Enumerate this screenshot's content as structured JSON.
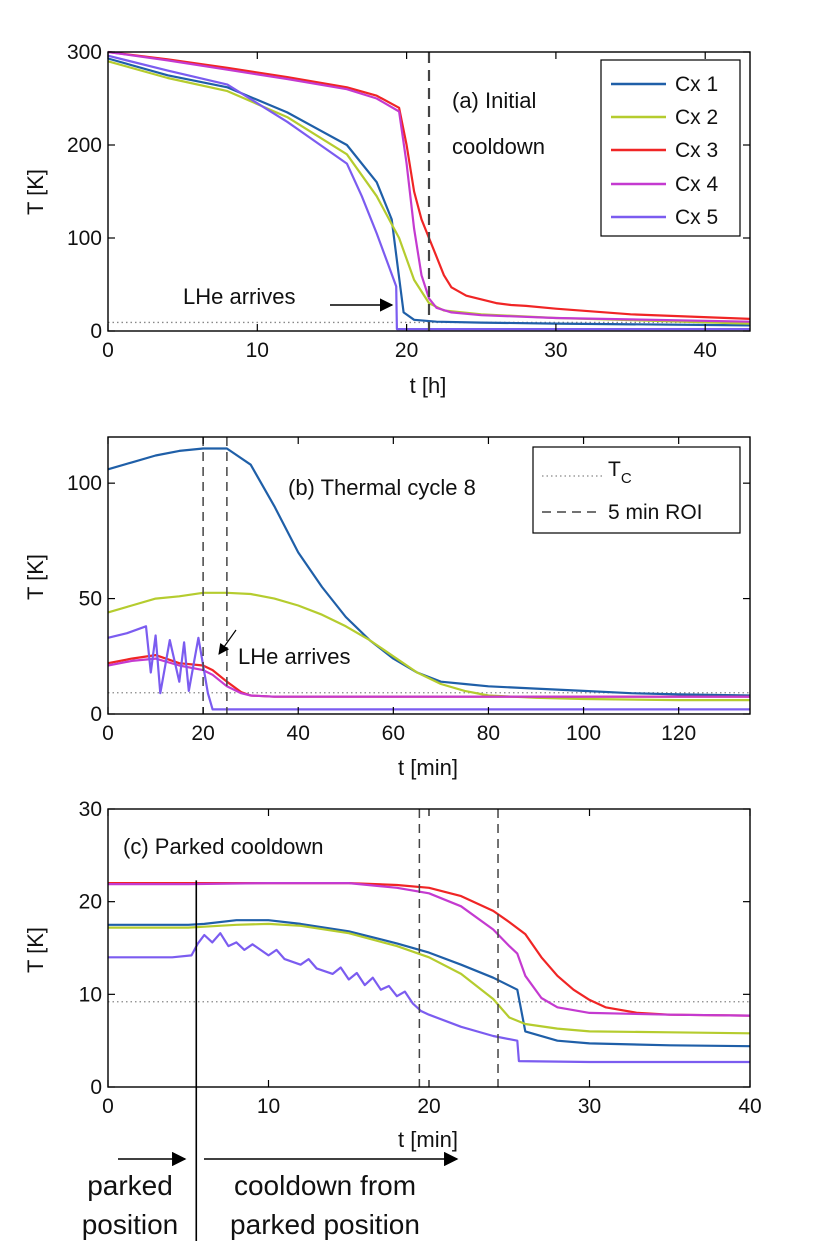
{
  "colors": {
    "Cx 1": "#1f5fa8",
    "Cx 2": "#b5cc2e",
    "Cx 3": "#f02525",
    "Cx 4": "#c43ad0",
    "Cx 5": "#7b5cf0",
    "Tc": "#888888",
    "roi": "#444444"
  },
  "chart_data": [
    {
      "id": "a",
      "type": "line",
      "title": "(a) Initial cooldown",
      "title_lines": [
        "(a) Initial",
        "cooldown"
      ],
      "xlabel": "t [h]",
      "ylabel": "T [K]",
      "xlim": [
        0,
        43
      ],
      "ylim": [
        0,
        300
      ],
      "xticks": [
        0,
        10,
        20,
        30,
        40
      ],
      "yticks": [
        0,
        100,
        200,
        300
      ],
      "tc": 9.2,
      "roi": [
        21.5
      ],
      "legend_entries": [
        "Cx 1",
        "Cx 2",
        "Cx 3",
        "Cx 4",
        "Cx 5"
      ],
      "annotation": {
        "text": "LHe arrives",
        "at": [
          19.3,
          30
        ]
      },
      "series": [
        {
          "name": "Cx 1",
          "x": [
            0,
            4,
            8,
            12,
            16,
            18,
            19,
            19.4,
            19.8,
            20.5,
            22,
            25,
            30,
            43
          ],
          "y": [
            293,
            275,
            262,
            235,
            200,
            160,
            120,
            70,
            20,
            12,
            10,
            9,
            8,
            6
          ]
        },
        {
          "name": "Cx 2",
          "x": [
            0,
            4,
            8,
            12,
            16,
            18,
            19.5,
            20.5,
            21.5,
            22.5,
            25,
            30,
            43
          ],
          "y": [
            290,
            272,
            258,
            230,
            190,
            145,
            100,
            55,
            30,
            22,
            18,
            14,
            8
          ]
        },
        {
          "name": "Cx 3",
          "x": [
            0,
            4,
            8,
            12,
            16,
            18,
            19.5,
            20,
            20.5,
            21,
            21.5,
            22,
            22.5,
            23,
            24,
            26,
            27,
            28,
            30,
            35,
            43
          ],
          "y": [
            300,
            292,
            283,
            273,
            262,
            253,
            240,
            200,
            150,
            120,
            100,
            80,
            60,
            47,
            38,
            30,
            28,
            27,
            24,
            18,
            13
          ]
        },
        {
          "name": "Cx 4",
          "x": [
            0,
            4,
            8,
            12,
            16,
            18,
            19.5,
            20,
            20.5,
            21,
            21.5,
            22,
            23,
            25,
            30,
            43
          ],
          "y": [
            300,
            291,
            281,
            271,
            260,
            250,
            236,
            180,
            110,
            60,
            35,
            25,
            20,
            17,
            14,
            10
          ]
        },
        {
          "name": "Cx 5",
          "x": [
            0,
            4,
            8,
            12,
            16,
            17,
            18,
            18.8,
            19.3,
            19.35,
            20,
            30,
            43
          ],
          "y": [
            296,
            280,
            265,
            225,
            180,
            145,
            105,
            70,
            48,
            2,
            2,
            2,
            2
          ]
        }
      ]
    },
    {
      "id": "b",
      "type": "line",
      "title": "(b) Thermal cycle 8",
      "xlabel": "t [min]",
      "ylabel": "T [K]",
      "xlim": [
        0,
        135
      ],
      "ylim": [
        0,
        120
      ],
      "xticks": [
        0,
        20,
        40,
        60,
        80,
        100,
        120
      ],
      "yticks": [
        0,
        50,
        100
      ],
      "tc": 9.2,
      "roi": [
        20,
        25
      ],
      "legend_entries": [
        {
          "style": "dotted",
          "label": "T",
          "sub": "C"
        },
        {
          "style": "dashed",
          "label": "5 min ROI",
          "sub": ""
        }
      ],
      "annotation": {
        "text": "LHe arrives",
        "at": [
          23,
          15
        ]
      },
      "series": [
        {
          "name": "Cx 1",
          "x": [
            0,
            5,
            10,
            15,
            20,
            25,
            30,
            35,
            40,
            45,
            50,
            55,
            60,
            65,
            70,
            75,
            80,
            90,
            100,
            110,
            120,
            135
          ],
          "y": [
            106,
            109,
            112,
            114,
            115,
            115,
            108,
            90,
            70,
            55,
            42,
            32,
            24,
            18,
            14,
            13,
            12,
            11,
            10,
            9,
            8.5,
            8
          ]
        },
        {
          "name": "Cx 2",
          "x": [
            0,
            5,
            10,
            15,
            20,
            25,
            30,
            35,
            40,
            45,
            50,
            55,
            60,
            65,
            70,
            75,
            80,
            90,
            100,
            120,
            135
          ],
          "y": [
            44,
            47,
            50,
            51,
            52.5,
            52.5,
            52,
            50,
            47,
            43,
            38,
            32,
            25,
            18,
            13,
            10,
            8,
            7,
            6.5,
            6,
            6
          ]
        },
        {
          "name": "Cx 3",
          "x": [
            0,
            5,
            10,
            15,
            20,
            22,
            25,
            28,
            30,
            35,
            40,
            60,
            80,
            100,
            120,
            135
          ],
          "y": [
            22,
            24,
            25.5,
            22,
            21,
            19,
            14,
            9.5,
            8,
            7.5,
            7.5,
            7.5,
            7.5,
            7.5,
            7.5,
            7.5
          ]
        },
        {
          "name": "Cx 4",
          "x": [
            0,
            5,
            10,
            15,
            20,
            22,
            25,
            28,
            30,
            35,
            40,
            60,
            80,
            100,
            120,
            135
          ],
          "y": [
            21,
            23,
            24,
            21,
            19,
            17,
            12,
            9,
            8,
            7.5,
            7.5,
            7.5,
            7.5,
            7.5,
            7.5,
            7.5
          ]
        },
        {
          "name": "Cx 5",
          "x": [
            0,
            4,
            8,
            9,
            10,
            11,
            13,
            15,
            16,
            17,
            19,
            21,
            22,
            23,
            25,
            40,
            80,
            135
          ],
          "y": [
            33,
            35,
            38,
            18,
            34,
            9,
            32,
            14,
            31,
            10,
            33,
            9,
            2,
            2,
            2,
            2,
            2,
            2
          ]
        }
      ]
    },
    {
      "id": "c",
      "type": "line",
      "title": "(c) Parked cooldown",
      "xlabel": "t [min]",
      "ylabel": "T [K]",
      "xlim": [
        0,
        40
      ],
      "ylim": [
        0,
        30
      ],
      "xticks": [
        0,
        10,
        20,
        30,
        40
      ],
      "yticks": [
        0,
        10,
        20,
        30
      ],
      "tc": 9.2,
      "roi": [
        19.4,
        24.3
      ],
      "marker_line": 5.5,
      "series": [
        {
          "name": "Cx 1",
          "x": [
            0,
            5,
            6,
            8,
            10,
            12,
            15,
            18,
            20,
            22,
            24,
            25.5,
            26,
            28,
            30,
            35,
            40
          ],
          "y": [
            17.5,
            17.5,
            17.6,
            18,
            18,
            17.6,
            16.8,
            15.5,
            14.5,
            13.2,
            11.8,
            10.5,
            6,
            5,
            4.7,
            4.5,
            4.4
          ]
        },
        {
          "name": "Cx 2",
          "x": [
            0,
            5,
            6,
            8,
            10,
            12,
            15,
            18,
            20,
            22,
            24,
            25,
            26,
            28,
            30,
            35,
            40
          ],
          "y": [
            17.2,
            17.2,
            17.3,
            17.5,
            17.6,
            17.4,
            16.6,
            15.2,
            14,
            12.2,
            9.5,
            7.5,
            6.8,
            6.3,
            6.0,
            5.9,
            5.8
          ]
        },
        {
          "name": "Cx 3",
          "x": [
            0,
            5,
            10,
            15,
            18,
            20,
            22,
            24,
            25,
            26,
            27,
            28,
            29,
            30,
            31,
            33,
            35,
            40
          ],
          "y": [
            22,
            22,
            22,
            22,
            21.8,
            21.5,
            20.6,
            19,
            17.8,
            16.5,
            14,
            12,
            10.5,
            9.4,
            8.6,
            8.0,
            7.8,
            7.7
          ]
        },
        {
          "name": "Cx 4",
          "x": [
            0,
            5,
            10,
            15,
            18,
            20,
            22,
            24,
            25,
            25.5,
            26,
            27,
            28,
            30,
            35,
            40
          ],
          "y": [
            21.9,
            21.9,
            22,
            22,
            21.5,
            20.9,
            19.5,
            17,
            15.2,
            14.4,
            12,
            9.6,
            8.6,
            8.0,
            7.8,
            7.7
          ]
        },
        {
          "name": "Cx 5",
          "x": [
            0,
            2,
            4,
            5.2,
            5.6,
            6,
            6.5,
            7,
            7.5,
            8,
            8.5,
            9,
            10,
            10.5,
            11,
            12,
            12.5,
            13,
            14,
            14.5,
            15,
            15.5,
            16,
            16.5,
            17,
            17.5,
            18,
            18.5,
            19,
            19.5,
            20,
            22,
            24,
            25.5,
            25.6,
            30,
            40
          ],
          "y": [
            14,
            14,
            14,
            14.2,
            15.5,
            16.4,
            15.6,
            16.6,
            15.2,
            15.6,
            14.8,
            15.4,
            14.2,
            14.8,
            13.8,
            13.2,
            13.8,
            12.8,
            12.2,
            12.9,
            11.6,
            12.3,
            11.0,
            11.8,
            10.5,
            10.9,
            9.8,
            10.3,
            9.0,
            8.2,
            7.8,
            6.5,
            5.5,
            5.0,
            2.8,
            2.7,
            2.7
          ]
        }
      ]
    }
  ],
  "bottom_labels": {
    "left_line1": "parked",
    "left_line2": "position",
    "right_line1": "cooldown from",
    "right_line2": "parked position"
  }
}
